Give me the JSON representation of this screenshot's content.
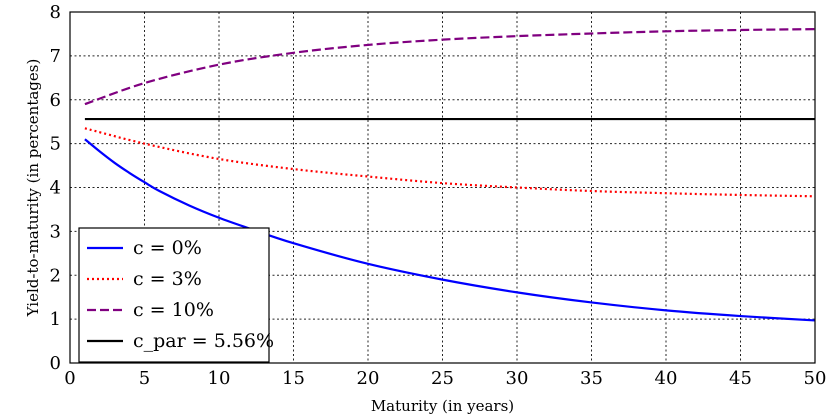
{
  "chart_data": {
    "type": "line",
    "xlabel": "Maturity (in years)",
    "ylabel": "Yield-to-maturity (in percentages)",
    "xlim": [
      0,
      50
    ],
    "ylim": [
      0,
      8
    ],
    "xticks": [
      "0",
      "5",
      "10",
      "15",
      "20",
      "25",
      "30",
      "35",
      "40",
      "45",
      "50"
    ],
    "yticks": [
      "0",
      "1",
      "2",
      "3",
      "4",
      "5",
      "6",
      "7",
      "8"
    ],
    "grid": true,
    "legend_position": "bottom-left",
    "series": [
      {
        "name": "c =   0%",
        "color": "#0000ff",
        "style": "solid",
        "x": [
          1,
          2,
          3,
          4,
          5,
          6,
          8,
          10,
          12,
          15,
          20,
          25,
          30,
          35,
          40,
          45,
          50
        ],
        "y": [
          5.1,
          4.82,
          4.56,
          4.33,
          4.12,
          3.92,
          3.59,
          3.31,
          3.07,
          2.73,
          2.26,
          1.9,
          1.61,
          1.38,
          1.2,
          1.07,
          0.97
        ]
      },
      {
        "name": "c =   3%",
        "color": "#ff0000",
        "style": "dotted",
        "x": [
          1,
          5,
          10,
          15,
          20,
          25,
          30,
          35,
          40,
          45,
          50
        ],
        "y": [
          5.35,
          5.0,
          4.65,
          4.42,
          4.25,
          4.1,
          4.0,
          3.92,
          3.87,
          3.83,
          3.8
        ]
      },
      {
        "name": "c = 10%",
        "color": "#800080",
        "style": "dashed",
        "x": [
          1,
          5,
          10,
          15,
          20,
          25,
          30,
          35,
          40,
          45,
          50
        ],
        "y": [
          5.9,
          6.38,
          6.8,
          7.07,
          7.25,
          7.37,
          7.45,
          7.51,
          7.56,
          7.59,
          7.61
        ]
      },
      {
        "name": "c_par = 5.56%",
        "color": "#000000",
        "style": "solid",
        "x": [
          1,
          50
        ],
        "y": [
          5.56,
          5.56
        ]
      }
    ]
  }
}
